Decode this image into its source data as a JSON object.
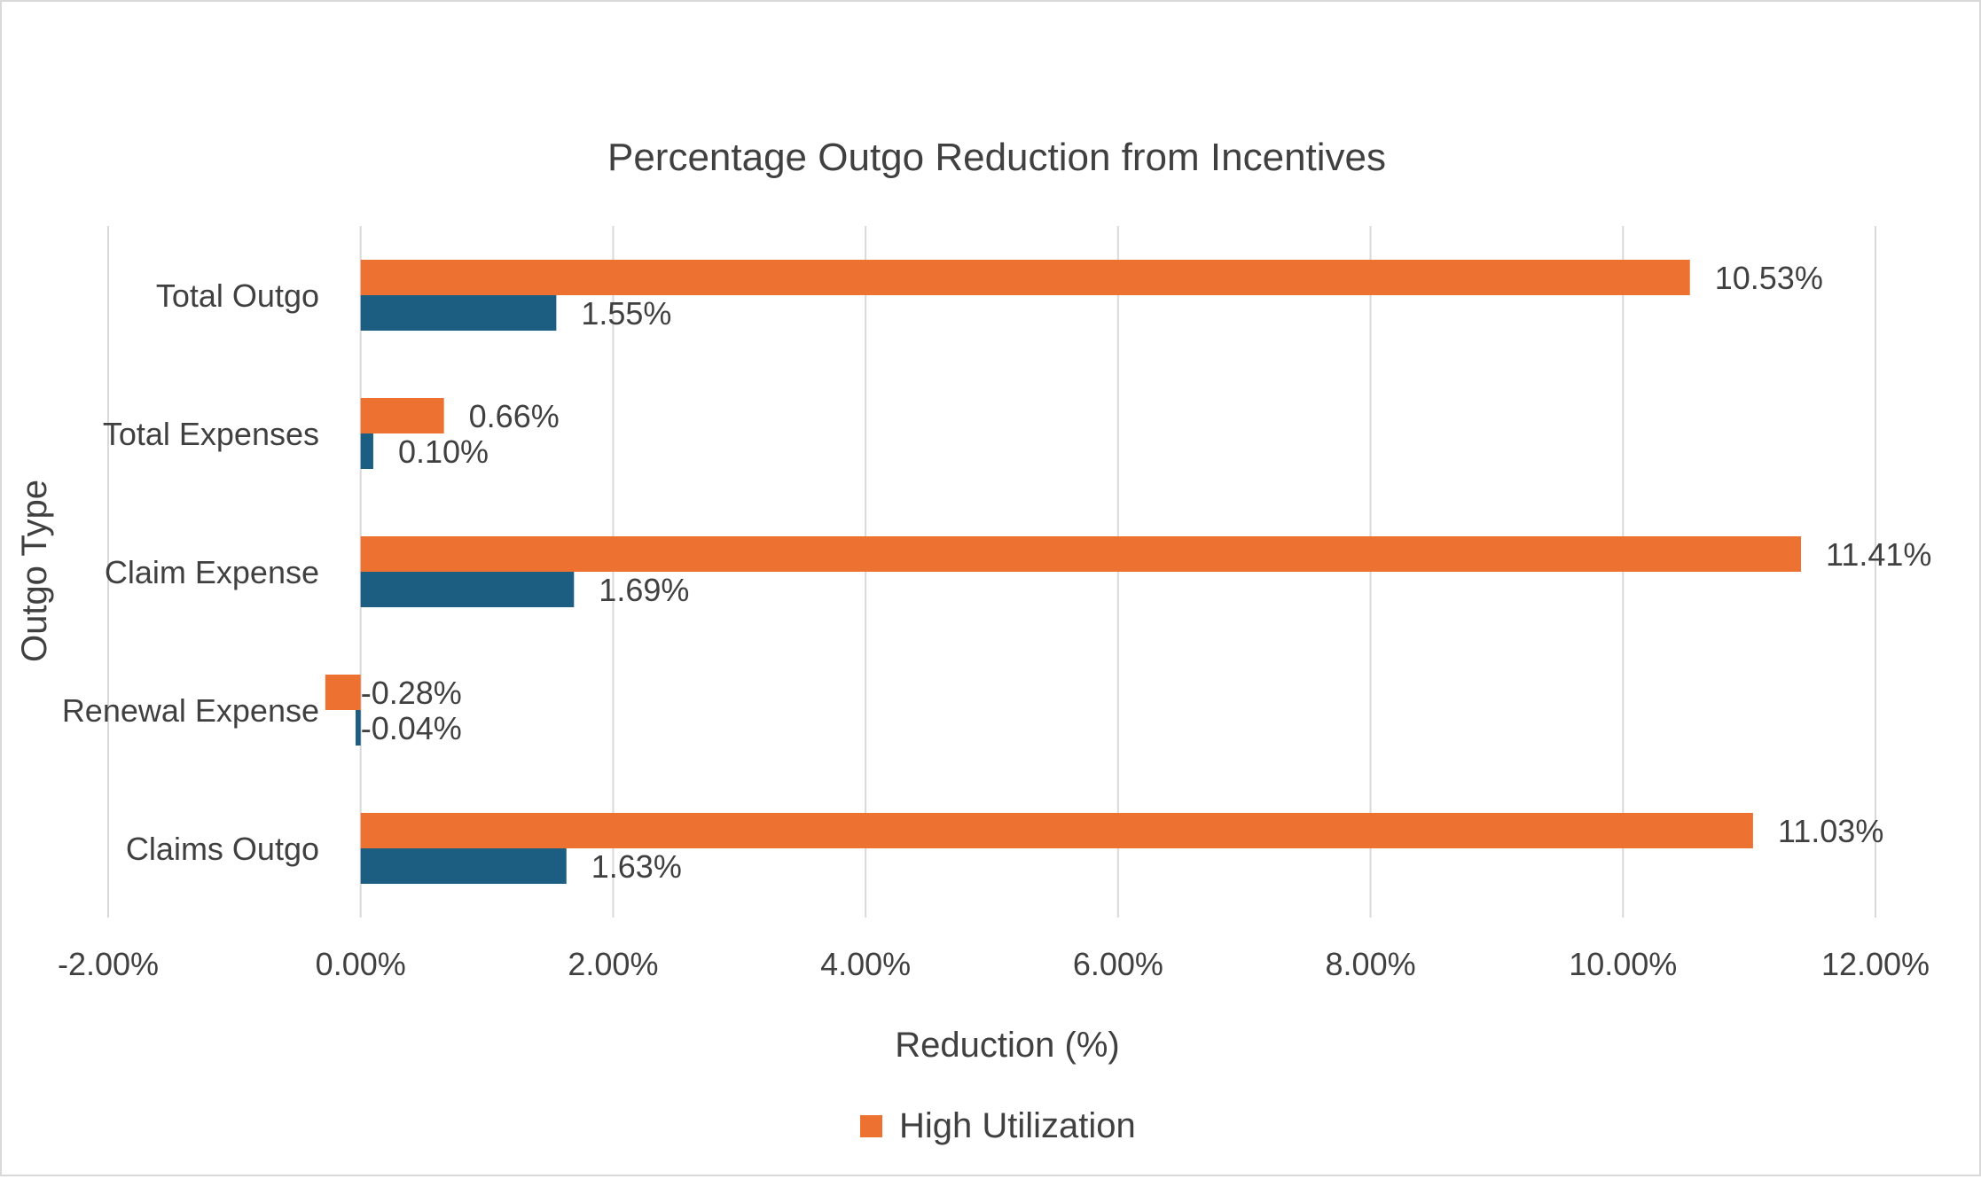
{
  "chart_data": {
    "type": "bar",
    "orientation": "horizontal",
    "title": "Percentage Outgo Reduction from Incentives",
    "xlabel": "Reduction (%)",
    "ylabel": "Outgo Type",
    "categories": [
      "Total Outgo",
      "Total Expenses",
      "Claim Expense",
      "Renewal Expense",
      "Claims Outgo"
    ],
    "series": [
      {
        "name": "High Utilization",
        "color": "#ED7232",
        "values": [
          10.53,
          0.66,
          11.41,
          -0.28,
          11.03
        ],
        "labels": [
          "10.53%",
          "0.66%",
          "11.41%",
          "-0.28%",
          "11.03%"
        ]
      },
      {
        "color": "#1B5E82",
        "values": [
          1.55,
          0.1,
          1.69,
          -0.04,
          1.63
        ],
        "labels": [
          "1.55%",
          "0.10%",
          "1.69%",
          "-0.04%",
          "1.63%"
        ]
      }
    ],
    "xlim": [
      -2,
      12
    ],
    "xticks": [
      -2,
      0,
      2,
      4,
      6,
      8,
      10,
      12
    ],
    "xtick_labels": [
      "-2.00%",
      "0.00%",
      "2.00%",
      "4.00%",
      "6.00%",
      "8.00%",
      "10.00%",
      "12.00%"
    ],
    "grid": true,
    "legend_position": "bottom",
    "legend_entries": [
      "High Utilization"
    ]
  }
}
